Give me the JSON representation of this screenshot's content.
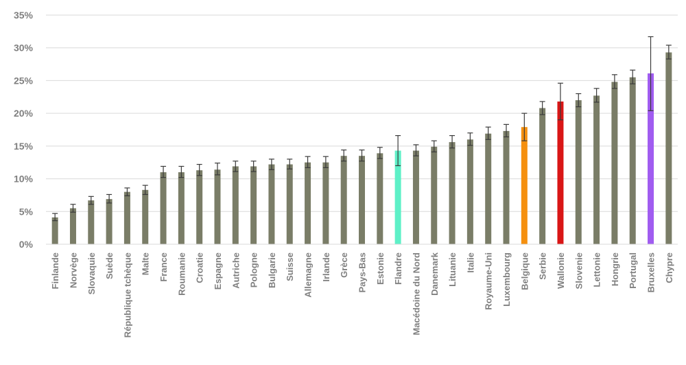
{
  "chart_data": {
    "type": "bar",
    "ylim": [
      0,
      35
    ],
    "yticks": [
      0,
      5,
      10,
      15,
      20,
      25,
      30,
      35
    ],
    "ytick_labels": [
      "0%",
      "5%",
      "10%",
      "15%",
      "20%",
      "25%",
      "30%",
      "35%"
    ],
    "grid": true,
    "default_color": "#7a7d67",
    "error_bar_color": "#3a3a3a",
    "categories": [
      "Finlande",
      "Norvège",
      "Slovaquie",
      "Suède",
      "République tchèque",
      "Malte",
      "France",
      "Roumanie",
      "Croatie",
      "Espagne",
      "Autriche",
      "Pologne",
      "Bulgarie",
      "Suisse",
      "Allemagne",
      "Irlande",
      "Grèce",
      "Pays-Bas",
      "Estonie",
      "Flandre",
      "Macédoine du Nord",
      "Danemark",
      "Lituanie",
      "Italie",
      "Royaume-Uni",
      "Luxembourg",
      "Belgique",
      "Serbie",
      "Wallonie",
      "Slovenie",
      "Lettonie",
      "Hongrie",
      "Portugal",
      "Bruxelles",
      "Chypre"
    ],
    "values": [
      4.1,
      5.5,
      6.7,
      6.9,
      8.0,
      8.3,
      11.0,
      11.0,
      11.3,
      11.4,
      11.9,
      11.9,
      12.2,
      12.2,
      12.5,
      12.5,
      13.5,
      13.5,
      13.9,
      14.3,
      14.3,
      14.9,
      15.6,
      16.0,
      16.9,
      17.3,
      17.9,
      20.8,
      21.8,
      22.0,
      22.7,
      24.8,
      25.5,
      26.1,
      29.3
    ],
    "error_low": [
      3.6,
      4.9,
      6.1,
      6.3,
      7.4,
      7.6,
      10.2,
      10.2,
      10.5,
      10.6,
      11.1,
      11.1,
      11.4,
      11.5,
      11.7,
      11.7,
      12.7,
      12.7,
      13.1,
      12.0,
      13.5,
      14.1,
      14.7,
      15.1,
      16.0,
      16.4,
      15.8,
      19.8,
      19.0,
      21.0,
      21.7,
      23.8,
      24.5,
      20.4,
      28.3
    ],
    "error_high": [
      4.7,
      6.1,
      7.3,
      7.6,
      8.6,
      9.0,
      11.9,
      11.9,
      12.2,
      12.4,
      12.7,
      12.7,
      13.0,
      13.0,
      13.4,
      13.4,
      14.4,
      14.4,
      14.8,
      16.6,
      15.2,
      15.8,
      16.6,
      17.0,
      17.9,
      18.3,
      20.0,
      21.8,
      24.6,
      23.0,
      23.8,
      25.9,
      26.6,
      31.7,
      30.4
    ],
    "highlights": {
      "Flandre": "#5ef0c7",
      "Belgique": "#f5900f",
      "Wallonie": "#d91616",
      "Bruxelles": "#a05cf0"
    }
  }
}
